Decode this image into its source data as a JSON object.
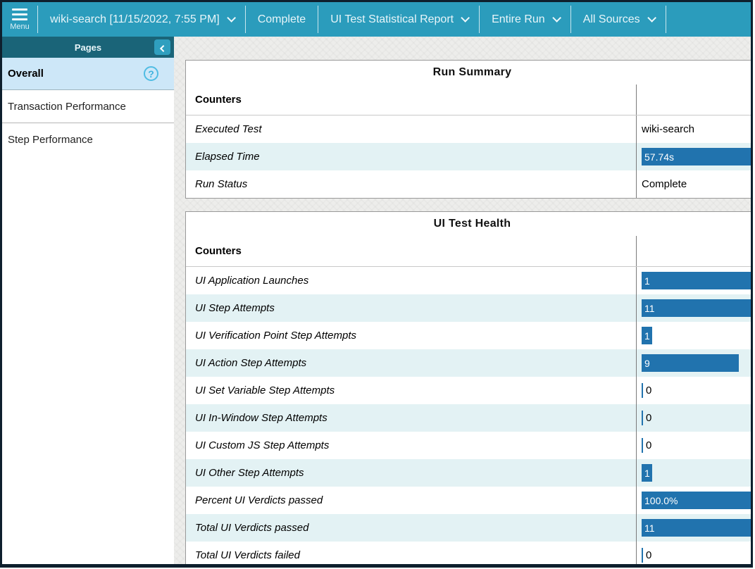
{
  "topbar": {
    "menu_label": "Menu",
    "items": [
      {
        "label": "wiki-search [11/15/2022, 7:55 PM]",
        "dropdown": true,
        "name": "run-selector-dropdown"
      },
      {
        "label": "Complete",
        "dropdown": false,
        "name": "run-status-label"
      },
      {
        "label": "UI Test Statistical Report",
        "dropdown": true,
        "name": "report-type-dropdown"
      },
      {
        "label": "Entire Run",
        "dropdown": true,
        "name": "scope-dropdown"
      },
      {
        "label": "All Sources",
        "dropdown": true,
        "name": "sources-dropdown"
      }
    ]
  },
  "sidebar": {
    "header": "Pages",
    "items": [
      {
        "label": "Overall",
        "selected": true,
        "has_help": true
      },
      {
        "label": "Transaction Performance",
        "selected": false,
        "has_help": false
      },
      {
        "label": "Step Performance",
        "selected": false,
        "has_help": false
      }
    ]
  },
  "panels": [
    {
      "title": "Run Summary",
      "column_header": "Counters",
      "rows": [
        {
          "label": "Executed Test",
          "value": "wiki-search",
          "type": "text"
        },
        {
          "label": "Elapsed Time",
          "value": "57.74s",
          "type": "bar",
          "fraction": 1.0
        },
        {
          "label": "Run Status",
          "value": "Complete",
          "type": "text"
        }
      ]
    },
    {
      "title": "UI Test Health",
      "column_header": "Counters",
      "rows": [
        {
          "label": "UI Application Launches",
          "value": "1",
          "type": "bar",
          "fraction": 1.0
        },
        {
          "label": "UI Step Attempts",
          "value": "11",
          "type": "bar",
          "fraction": 1.0
        },
        {
          "label": "UI Verification Point Step Attempts",
          "value": "1",
          "type": "bar",
          "fraction": 0.09
        },
        {
          "label": "UI Action Step Attempts",
          "value": "9",
          "type": "bar",
          "fraction": 0.82
        },
        {
          "label": "UI Set Variable Step Attempts",
          "value": "0",
          "type": "zero"
        },
        {
          "label": "UI In-Window Step Attempts",
          "value": "0",
          "type": "zero"
        },
        {
          "label": "UI Custom JS Step Attempts",
          "value": "0",
          "type": "zero"
        },
        {
          "label": "UI Other Step Attempts",
          "value": "1",
          "type": "bar",
          "fraction": 0.09
        },
        {
          "label": "Percent UI Verdicts passed",
          "value": "100.0%",
          "type": "bar",
          "fraction": 1.0
        },
        {
          "label": "Total UI Verdicts passed",
          "value": "11",
          "type": "bar",
          "fraction": 1.0
        },
        {
          "label": "Total UI Verdicts failed",
          "value": "0",
          "type": "zero"
        }
      ]
    }
  ],
  "colors": {
    "topbar": "#2b9cbc",
    "pages_header": "#1a6478",
    "selected_item": "#cde7f8",
    "alt_row": "#e3f2f4",
    "bar": "#2173ae",
    "help_icon": "#4fbce3",
    "window_border": "#0e1f2d"
  }
}
